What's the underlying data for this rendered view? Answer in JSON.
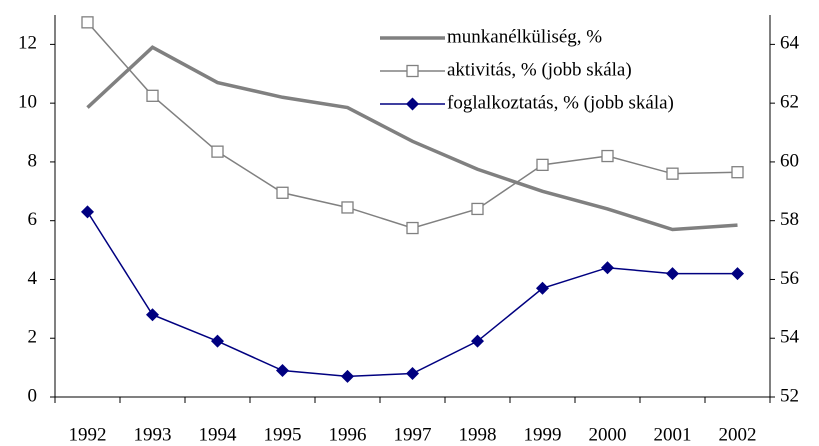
{
  "chart_data": {
    "type": "line",
    "categories": [
      "1992",
      "1993",
      "1994",
      "1995",
      "1996",
      "1997",
      "1998",
      "1999",
      "2000",
      "2001",
      "2002"
    ],
    "series": [
      {
        "name": "munkanélküliség, %",
        "color": "#808080",
        "marker": "none",
        "values": [
          9.85,
          11.9,
          10.7,
          10.2,
          9.85,
          8.7,
          7.75,
          7.0,
          6.4,
          5.7,
          5.85
        ]
      },
      {
        "name": "aktivitás, % (jobb skála)",
        "color": "#808080",
        "marker": "square",
        "axis": "y2",
        "values": [
          64.75,
          62.25,
          60.35,
          58.95,
          58.45,
          57.75,
          58.4,
          59.9,
          60.2,
          59.6,
          59.65
        ]
      },
      {
        "name": "foglalkoztatás, % (jobb skála)",
        "color": "#000080",
        "marker": "diamond",
        "axis": "y2",
        "values": [
          58.3,
          54.8,
          53.9,
          52.9,
          52.7,
          52.8,
          53.9,
          55.7,
          56.4,
          56.2,
          56.2
        ]
      }
    ],
    "ylim": [
      0,
      13
    ],
    "yticks": [
      0,
      2,
      4,
      6,
      8,
      10,
      12
    ],
    "y2lim": [
      52,
      65
    ],
    "y2ticks": [
      52,
      54,
      56,
      58,
      60,
      62,
      64
    ],
    "legend": "top-right",
    "grid": false
  }
}
